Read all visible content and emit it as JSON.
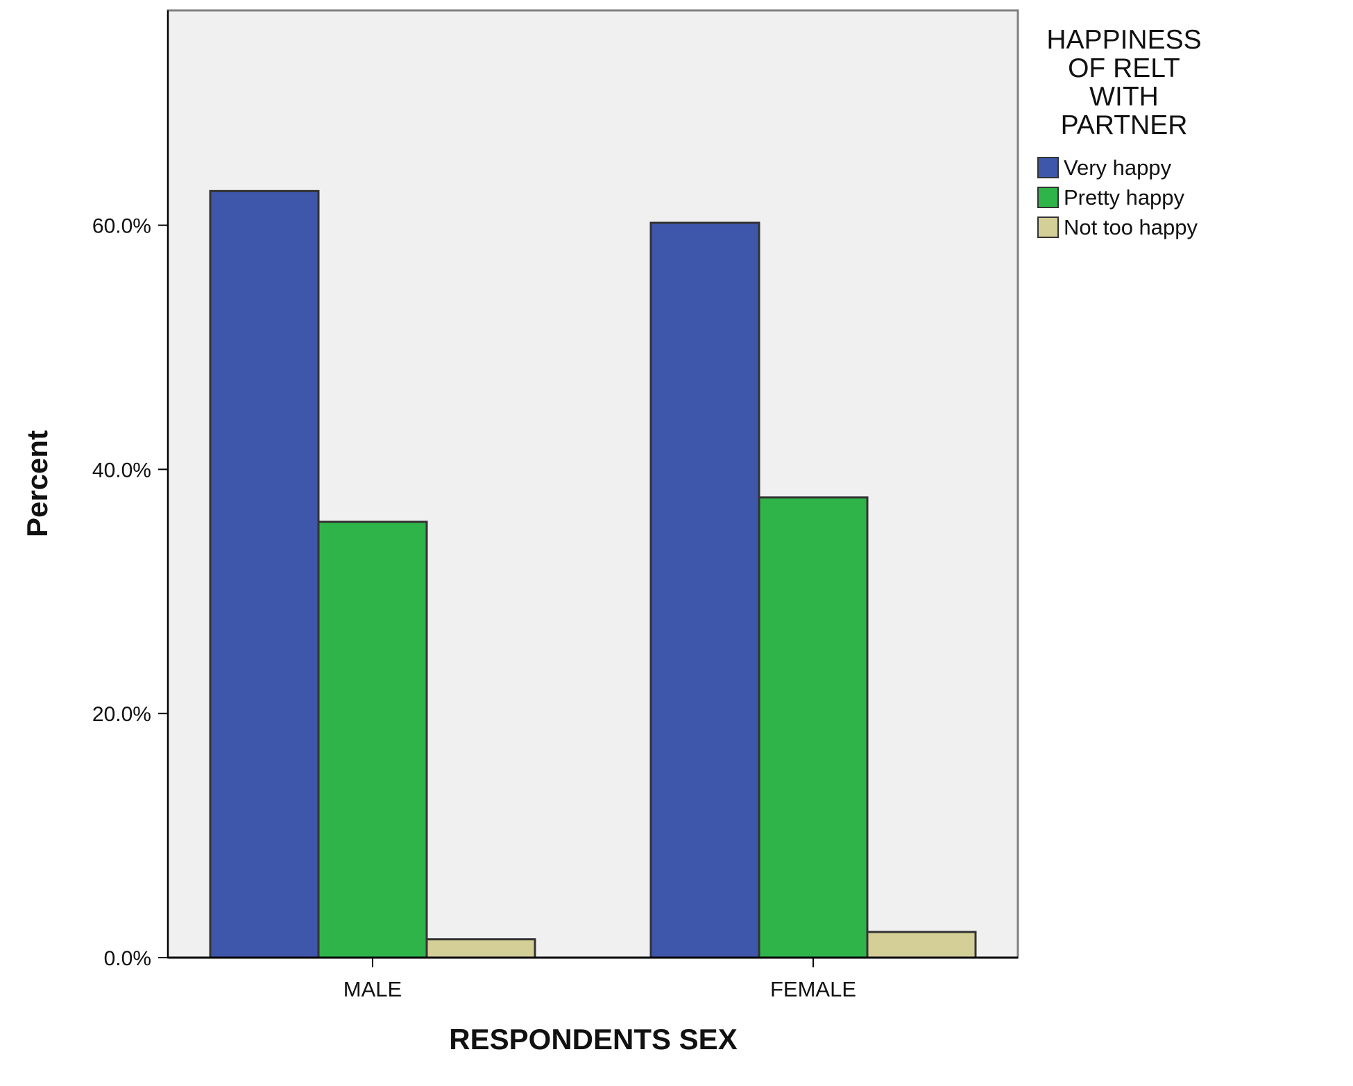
{
  "chart_data": {
    "type": "bar",
    "categories": [
      "MALE",
      "FEMALE"
    ],
    "series": [
      {
        "name": "Very happy",
        "values": [
          62.8,
          60.2
        ],
        "color": "#3f57ab"
      },
      {
        "name": "Pretty happy",
        "values": [
          35.7,
          37.7
        ],
        "color": "#2fb44a"
      },
      {
        "name": "Not too happy",
        "values": [
          1.5,
          2.1
        ],
        "color": "#d4cf97"
      }
    ],
    "title": "",
    "xlabel": "RESPONDENTS SEX",
    "ylabel": "Percent",
    "ylim": [
      0,
      77.6
    ],
    "yticks": [
      0,
      20,
      40,
      60
    ],
    "ytick_labels": [
      "0.0%",
      "20.0%",
      "40.0%",
      "60.0%"
    ],
    "legend_title_lines": [
      "HAPPINESS",
      "OF RELT",
      "WITH",
      "PARTNER"
    ],
    "legend_position": "right",
    "grid": false,
    "plot_background": "#f0f0f0"
  }
}
